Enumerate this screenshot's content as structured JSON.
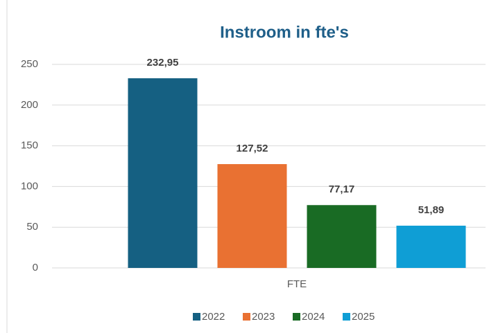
{
  "chart_data": {
    "type": "bar",
    "title": "Instroom in fte's",
    "categories": [
      "FTE"
    ],
    "series": [
      {
        "name": "2022",
        "color": "#156082",
        "values": [
          232.95
        ],
        "value_labels": [
          "232,95"
        ]
      },
      {
        "name": "2023",
        "color": "#e97132",
        "values": [
          127.52
        ],
        "value_labels": [
          "127,52"
        ]
      },
      {
        "name": "2024",
        "color": "#196b24",
        "values": [
          77.17
        ],
        "value_labels": [
          "77,17"
        ]
      },
      {
        "name": "2025",
        "color": "#0f9ed5",
        "values": [
          51.89
        ],
        "value_labels": [
          "51,89"
        ]
      }
    ],
    "ylim": [
      0,
      250
    ],
    "yticks": [
      0,
      50,
      100,
      150,
      200,
      250
    ],
    "grid": true,
    "legend": "bottom"
  }
}
